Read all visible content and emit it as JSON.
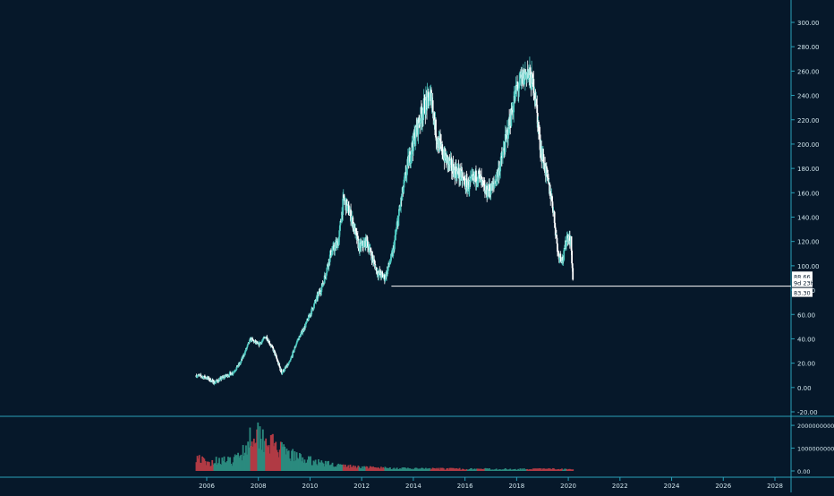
{
  "colors": {
    "background": "#06182a",
    "up": "#4fc9c1",
    "down": "#ffffff",
    "volume_up": "#2b8a7e",
    "volume_down": "#b03a44",
    "axis": "#2aa1b8",
    "axis_text": "#cfe3ea",
    "level_line": "#ffffff",
    "badge_bg": "#ffffff",
    "badge_text": "#06182a"
  },
  "chart_data": {
    "type": "candlestick",
    "title": "",
    "timeframe": "weekly",
    "y_axis": {
      "ticks": [
        "300.00",
        "280.00",
        "260.00",
        "240.00",
        "220.00",
        "200.00",
        "180.00",
        "160.00",
        "140.00",
        "120.00",
        "100.00",
        "80.00",
        "60.00",
        "40.00",
        "20.00",
        "0.00",
        "-20.00"
      ],
      "range": [
        -20,
        300
      ]
    },
    "x_axis": {
      "ticks": [
        "2006",
        "2008",
        "2010",
        "2012",
        "2014",
        "2016",
        "2018",
        "2020",
        "2022",
        "2024",
        "2026",
        "2028"
      ],
      "range": [
        2005.3,
        2028.9
      ]
    },
    "price_path": [
      [
        2005.6,
        10
      ],
      [
        2006.0,
        8
      ],
      [
        2006.3,
        4
      ],
      [
        2006.7,
        9
      ],
      [
        2007.0,
        12
      ],
      [
        2007.3,
        20
      ],
      [
        2007.7,
        40
      ],
      [
        2008.0,
        35
      ],
      [
        2008.3,
        42
      ],
      [
        2008.6,
        30
      ],
      [
        2008.9,
        12
      ],
      [
        2009.2,
        20
      ],
      [
        2009.5,
        38
      ],
      [
        2009.8,
        50
      ],
      [
        2010.1,
        65
      ],
      [
        2010.5,
        85
      ],
      [
        2010.8,
        110
      ],
      [
        2011.1,
        120
      ],
      [
        2011.3,
        155
      ],
      [
        2011.6,
        140
      ],
      [
        2011.9,
        115
      ],
      [
        2012.2,
        120
      ],
      [
        2012.6,
        95
      ],
      [
        2012.9,
        90
      ],
      [
        2013.2,
        110
      ],
      [
        2013.5,
        150
      ],
      [
        2013.8,
        185
      ],
      [
        2014.1,
        210
      ],
      [
        2014.4,
        230
      ],
      [
        2014.7,
        240
      ],
      [
        2014.9,
        205
      ],
      [
        2015.2,
        190
      ],
      [
        2015.5,
        180
      ],
      [
        2015.8,
        175
      ],
      [
        2016.1,
        165
      ],
      [
        2016.5,
        175
      ],
      [
        2016.8,
        160
      ],
      [
        2017.1,
        165
      ],
      [
        2017.4,
        185
      ],
      [
        2017.8,
        225
      ],
      [
        2018.0,
        245
      ],
      [
        2018.4,
        260
      ],
      [
        2018.7,
        245
      ],
      [
        2018.9,
        200
      ],
      [
        2019.2,
        170
      ],
      [
        2019.4,
        150
      ],
      [
        2019.6,
        110
      ],
      [
        2019.8,
        105
      ],
      [
        2019.95,
        125
      ],
      [
        2020.1,
        120
      ],
      [
        2020.18,
        88.66
      ]
    ],
    "volume_axis": {
      "ticks": [
        "2000000000.00",
        "1000000000.00",
        "0.00"
      ],
      "range": [
        0,
        2200000000
      ]
    },
    "volume_profile": [
      [
        2005.6,
        700000000
      ],
      [
        2006.0,
        300000000
      ],
      [
        2006.5,
        500000000
      ],
      [
        2007.0,
        400000000
      ],
      [
        2007.5,
        1000000000
      ],
      [
        2007.8,
        1800000000
      ],
      [
        2008.2,
        1500000000
      ],
      [
        2008.5,
        1200000000
      ],
      [
        2009.0,
        800000000
      ],
      [
        2009.5,
        600000000
      ],
      [
        2010.0,
        450000000
      ],
      [
        2010.5,
        350000000
      ],
      [
        2011.0,
        260000000
      ],
      [
        2011.5,
        200000000
      ],
      [
        2012.5,
        140000000
      ],
      [
        2014.0,
        100000000
      ],
      [
        2016.0,
        90000000
      ],
      [
        2018.0,
        80000000
      ],
      [
        2020.2,
        90000000
      ]
    ],
    "level_line": {
      "value": 83.3,
      "start_x": 2013.15
    },
    "price_badges": [
      {
        "text": "88.66"
      },
      {
        "text": "9d 23h"
      },
      {
        "text": "83.30"
      }
    ]
  }
}
